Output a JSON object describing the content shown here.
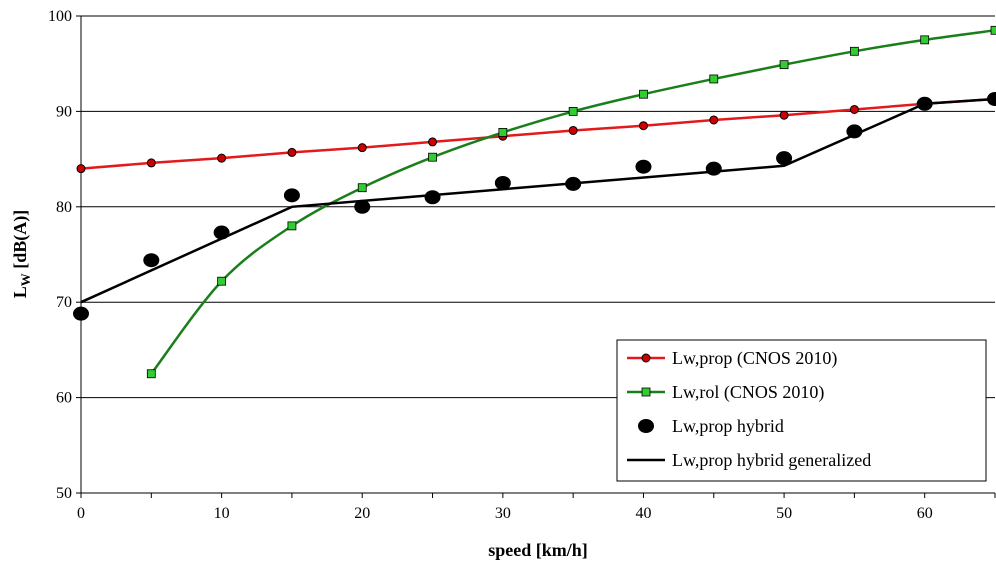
{
  "chart_data": {
    "type": "line",
    "title": "",
    "xlabel": "speed [km/h]",
    "ylabel_main": "L",
    "ylabel_sub": "W",
    "ylabel_unit": " [dB(A)]",
    "xlim": [
      0,
      65
    ],
    "ylim": [
      50,
      100
    ],
    "xticks": [
      0,
      10,
      20,
      30,
      40,
      50,
      60
    ],
    "yticks": [
      50,
      60,
      70,
      80,
      90,
      100
    ],
    "grid": "horizontal",
    "legend_position": "bottom-right",
    "series": [
      {
        "name": "Lw,prop (CNOS 2010)",
        "color": "#e31a1c",
        "marker_color": "#cc0000",
        "marker": "circle",
        "line": true,
        "x": [
          0,
          5,
          10,
          15,
          20,
          25,
          30,
          35,
          40,
          45,
          50,
          55,
          60,
          65
        ],
        "y": [
          84.0,
          84.6,
          85.1,
          85.7,
          86.2,
          86.8,
          87.4,
          88.0,
          88.5,
          89.1,
          89.6,
          90.2,
          90.8,
          91.3
        ]
      },
      {
        "name": "Lw,rol (CNOS 2010)",
        "color": "#1a7f1a",
        "marker_color": "#33cc33",
        "marker": "square",
        "line": true,
        "x": [
          5,
          10,
          15,
          20,
          25,
          30,
          35,
          40,
          45,
          50,
          55,
          60,
          65
        ],
        "y": [
          62.5,
          72.2,
          78.0,
          82.0,
          85.2,
          87.8,
          90.0,
          91.8,
          93.4,
          94.9,
          96.3,
          97.5,
          98.5
        ]
      },
      {
        "name": "Lw,prop hybrid",
        "color": "#000000",
        "marker": "ellipse",
        "line": false,
        "x": [
          0,
          5,
          10,
          15,
          20,
          25,
          30,
          35,
          40,
          45,
          50,
          55,
          60,
          65
        ],
        "y": [
          68.8,
          74.4,
          77.3,
          81.2,
          80.0,
          81.0,
          82.5,
          82.4,
          84.2,
          84.0,
          85.1,
          87.9,
          90.8,
          91.3
        ]
      },
      {
        "name": "Lw,prop hybrid generalized",
        "color": "#000000",
        "marker": "none",
        "line": true,
        "x": [
          0,
          15,
          50,
          60,
          65
        ],
        "y": [
          70.0,
          80.0,
          84.3,
          90.8,
          91.3
        ]
      }
    ]
  }
}
